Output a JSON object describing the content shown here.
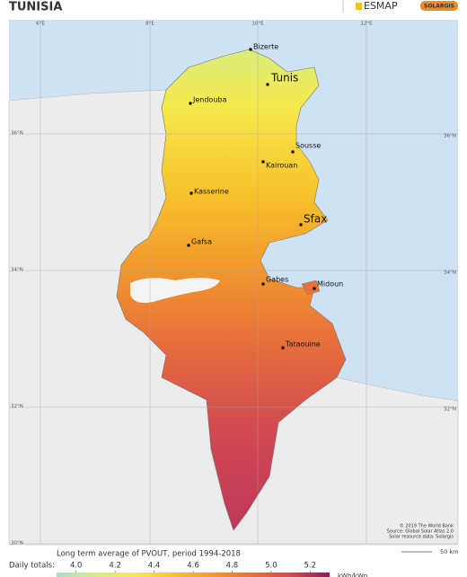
{
  "header": {
    "title": "TUNISIA",
    "logo_esmap": "ESMAP",
    "logo_solargis": "SOLARGIS"
  },
  "map": {
    "longitude_labels": [
      "6°E",
      "8°E",
      "10°E",
      "12°E"
    ],
    "latitude_labels": [
      "36°N",
      "34°N",
      "32°N",
      "30°N"
    ],
    "cities": [
      "Bizerte",
      "Tunis",
      "Jendouba",
      "Sousse",
      "Kairouan",
      "Kasserine",
      "Sfax",
      "Gafsa",
      "Gabes",
      "Midoun",
      "Tataouine"
    ],
    "credits": [
      "© 2019 The World Bank",
      "Source: Global Solar Atlas 2.0",
      "Solar resource data: Solargis"
    ],
    "scale_label": "50 km"
  },
  "legend": {
    "title": "Long term average of PVOUT, period 1994-2018",
    "prefix": "Daily totals:",
    "ticks": [
      {
        "value": 4.0,
        "label": "4.0"
      },
      {
        "value": 4.2,
        "label": "4.2"
      },
      {
        "value": 4.4,
        "label": "4.4"
      },
      {
        "value": 4.6,
        "label": "4.6"
      },
      {
        "value": 4.8,
        "label": "4.8"
      },
      {
        "value": 5.0,
        "label": "5.0"
      },
      {
        "value": 5.2,
        "label": "5.2"
      }
    ],
    "range": [
      3.9,
      5.3
    ],
    "colors": [
      "#a9dccb",
      "#d8ec8c",
      "#f7ea4f",
      "#f8c52a",
      "#f39a28",
      "#e8703a",
      "#d24b4c",
      "#8e1c5c"
    ],
    "unit": "kWh/kWp"
  }
}
